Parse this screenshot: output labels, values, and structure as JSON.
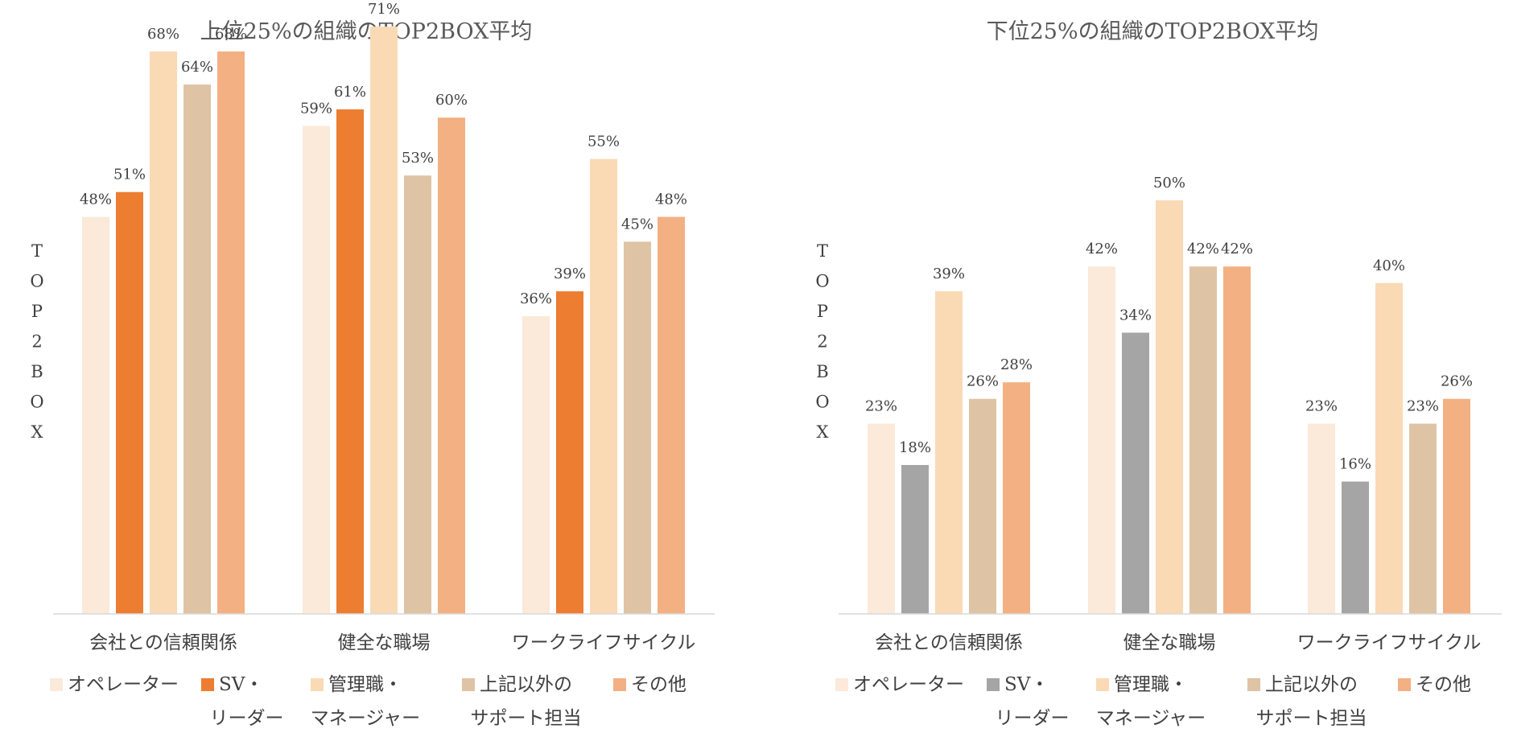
{
  "chart_data": [
    {
      "type": "bar",
      "title": "上位25%の組織のTOP2BOX平均",
      "ylabel": "TOP2BOX",
      "xlabel": "",
      "ylim": [
        0,
        85
      ],
      "grid": false,
      "legend_position": "bottom",
      "categories": [
        "会社との信頼関係",
        "健全な職場",
        "ワークライフサイクル"
      ],
      "series": [
        {
          "name": "オペレーター",
          "legend_lines": [
            "オペレーター"
          ],
          "color": "#FBE9DA",
          "values": [
            48,
            59,
            36
          ],
          "labels": [
            "48%",
            "59%",
            "36%"
          ]
        },
        {
          "name": "SV・リーダー",
          "legend_lines": [
            "SV・",
            "リーダー"
          ],
          "color": "#ED7D31",
          "values": [
            51,
            61,
            39
          ],
          "labels": [
            "51%",
            "61%",
            "39%"
          ]
        },
        {
          "name": "管理職・マネージャー",
          "legend_lines": [
            "管理職・",
            "マネージャー"
          ],
          "color": "#F9DAB5",
          "values": [
            68,
            71,
            55
          ],
          "labels": [
            "68%",
            "71%",
            "55%"
          ]
        },
        {
          "name": "上記以外のサポート担当",
          "legend_lines": [
            "上記以外の",
            "サポート担当"
          ],
          "color": "#DEC3A5",
          "values": [
            64,
            53,
            45
          ],
          "labels": [
            "64%",
            "53%",
            "45%"
          ]
        },
        {
          "name": "その他",
          "legend_lines": [
            "その他"
          ],
          "color": "#F3B083",
          "values": [
            68,
            60,
            48
          ],
          "labels": [
            "68%",
            "60%",
            "48%"
          ]
        }
      ]
    },
    {
      "type": "bar",
      "title": "下位25%の組織のTOP2BOX平均",
      "ylabel": "TOP2BOX",
      "xlabel": "",
      "ylim": [
        0,
        85
      ],
      "grid": false,
      "legend_position": "bottom",
      "categories": [
        "会社との信頼関係",
        "健全な職場",
        "ワークライフサイクル"
      ],
      "series": [
        {
          "name": "オペレーター",
          "legend_lines": [
            "オペレーター"
          ],
          "color": "#FBE9DA",
          "values": [
            23,
            42,
            23
          ],
          "labels": [
            "23%",
            "42%",
            "23%"
          ]
        },
        {
          "name": "SV・リーダー",
          "legend_lines": [
            "SV・",
            "リーダー"
          ],
          "color": "#A5A5A5",
          "values": [
            18,
            34,
            16
          ],
          "labels": [
            "18%",
            "34%",
            "16%"
          ]
        },
        {
          "name": "管理職・マネージャー",
          "legend_lines": [
            "管理職・",
            "マネージャー"
          ],
          "color": "#F9DAB5",
          "values": [
            39,
            50,
            40
          ],
          "labels": [
            "39%",
            "50%",
            "40%"
          ]
        },
        {
          "name": "上記以外のサポート担当",
          "legend_lines": [
            "上記以外の",
            "サポート担当"
          ],
          "color": "#DEC3A5",
          "values": [
            26,
            42,
            23
          ],
          "labels": [
            "26%",
            "42%",
            "23%"
          ]
        },
        {
          "name": "その他",
          "legend_lines": [
            "その他"
          ],
          "color": "#F3B083",
          "values": [
            28,
            42,
            26
          ],
          "labels": [
            "28%",
            "42%",
            "26%"
          ]
        }
      ]
    }
  ]
}
